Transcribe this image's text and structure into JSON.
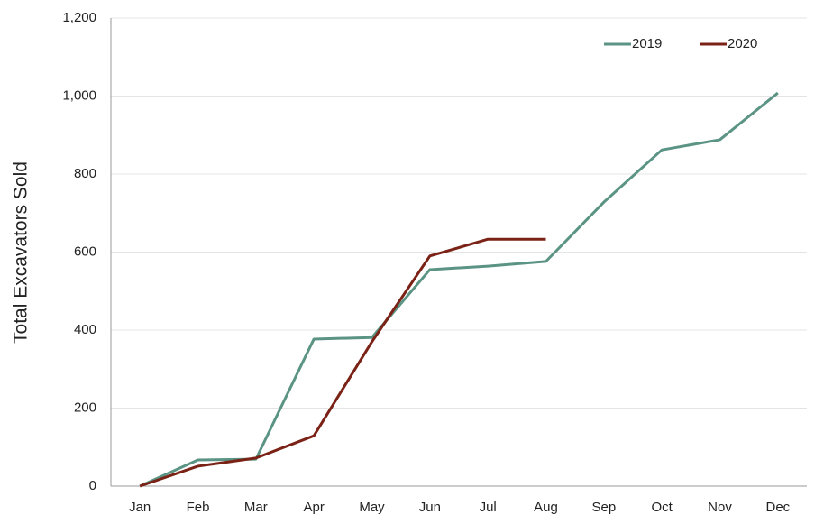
{
  "chart_data": {
    "type": "line",
    "y_label": "Total Excavators Sold",
    "categories": [
      "Jan",
      "Feb",
      "Mar",
      "Apr",
      "May",
      "Jun",
      "Jul",
      "Aug",
      "Sep",
      "Oct",
      "Nov",
      "Dec"
    ],
    "series": [
      {
        "name": "2019",
        "color": "#5b9484",
        "values": [
          0,
          67,
          69,
          377,
          381,
          555,
          564,
          576,
          728,
          862,
          888,
          1008
        ]
      },
      {
        "name": "2020",
        "color": "#7b2217",
        "values": [
          0,
          51,
          72,
          129,
          370,
          590,
          633,
          633,
          null,
          null,
          null,
          null
        ]
      }
    ],
    "ylim": [
      0,
      1200
    ],
    "yticks": [
      0,
      200,
      400,
      600,
      800,
      {
        "value": 1000,
        "label": "1,000"
      },
      {
        "value": 1200,
        "label": "1,200"
      }
    ],
    "grid": true,
    "legend": "top-right"
  }
}
